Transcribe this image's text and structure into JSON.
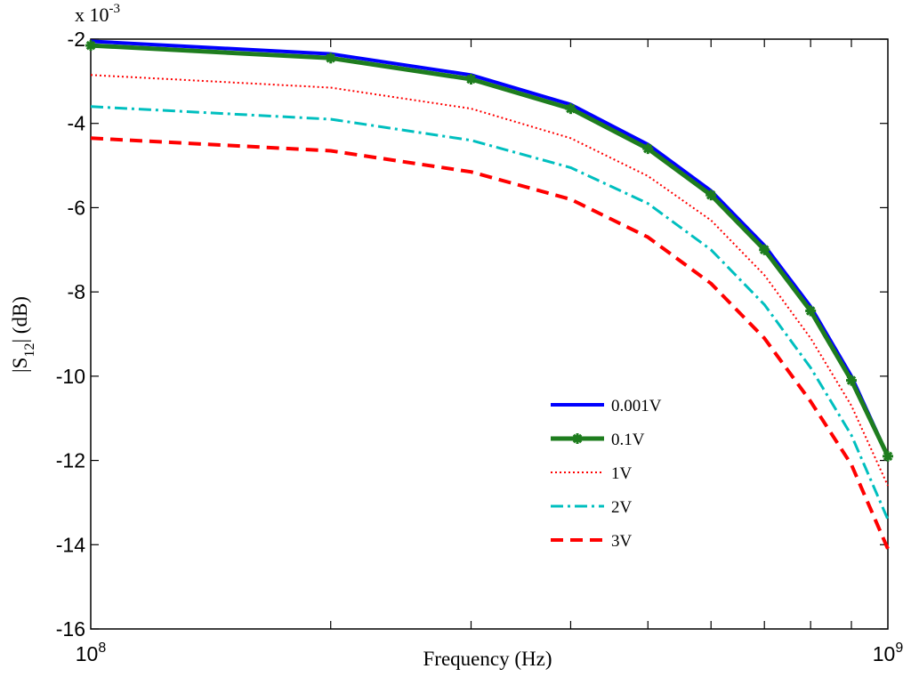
{
  "chart_data": {
    "type": "line",
    "title": "",
    "xlabel": "Frequency (Hz)",
    "ylabel_main": "|S",
    "ylabel_sub": "12",
    "ylabel_rest": "| (dB)",
    "xscale": "log",
    "xlim": [
      100000000,
      1000000000
    ],
    "ylim": [
      -0.016,
      -0.002
    ],
    "y_multiplier": {
      "base": "x 10",
      "exponent": "-3"
    },
    "y_ticks": [
      {
        "value": -0.002,
        "label": "-2"
      },
      {
        "value": -0.004,
        "label": "-4"
      },
      {
        "value": -0.006,
        "label": "-6"
      },
      {
        "value": -0.008,
        "label": "-8"
      },
      {
        "value": -0.01,
        "label": "-10"
      },
      {
        "value": -0.012,
        "label": "-12"
      },
      {
        "value": -0.014,
        "label": "-14"
      },
      {
        "value": -0.016,
        "label": "-16"
      }
    ],
    "x_ticks": [
      {
        "value": 100000000,
        "base": "10",
        "exponent": "8"
      },
      {
        "value": 1000000000,
        "base": "10",
        "exponent": "9"
      }
    ],
    "x_minor_ticks": [
      200000000,
      300000000,
      400000000,
      500000000,
      600000000,
      700000000,
      800000000,
      900000000
    ],
    "x": [
      100000000,
      200000000,
      300000000,
      400000000,
      500000000,
      600000000,
      700000000,
      800000000,
      900000000,
      1000000000
    ],
    "series": [
      {
        "name": "0.001V",
        "color": "#0000ff",
        "dash": "",
        "width": 4,
        "marker": "none",
        "values": [
          -0.00205,
          -0.00235,
          -0.00285,
          -0.00355,
          -0.0045,
          -0.0056,
          -0.0069,
          -0.00835,
          -0.01,
          -0.0119
        ]
      },
      {
        "name": "0.1V",
        "color": "#1e7d1e",
        "dash": "",
        "width": 5,
        "marker": "asterisk",
        "values": [
          -0.00215,
          -0.00245,
          -0.00295,
          -0.00365,
          -0.0046,
          -0.0057,
          -0.007,
          -0.00845,
          -0.0101,
          -0.0119
        ]
      },
      {
        "name": "1V",
        "color": "#ff0000",
        "dash": "2,3",
        "width": 2,
        "marker": "none",
        "values": [
          -0.00285,
          -0.00315,
          -0.00365,
          -0.00435,
          -0.00525,
          -0.0063,
          -0.0076,
          -0.0091,
          -0.0107,
          -0.0126
        ]
      },
      {
        "name": "2V",
        "color": "#00bfbf",
        "dash": "14,5,3,5",
        "width": 3,
        "marker": "none",
        "values": [
          -0.0036,
          -0.0039,
          -0.0044,
          -0.00505,
          -0.0059,
          -0.007,
          -0.0083,
          -0.0098,
          -0.0114,
          -0.0134
        ]
      },
      {
        "name": "3V",
        "color": "#ff0000",
        "dash": "14,8",
        "width": 4,
        "marker": "none",
        "values": [
          -0.00435,
          -0.00465,
          -0.00515,
          -0.0058,
          -0.0067,
          -0.0078,
          -0.0091,
          -0.0106,
          -0.0121,
          -0.0141
        ]
      }
    ],
    "legend_position": "lower-center",
    "grid": false
  }
}
